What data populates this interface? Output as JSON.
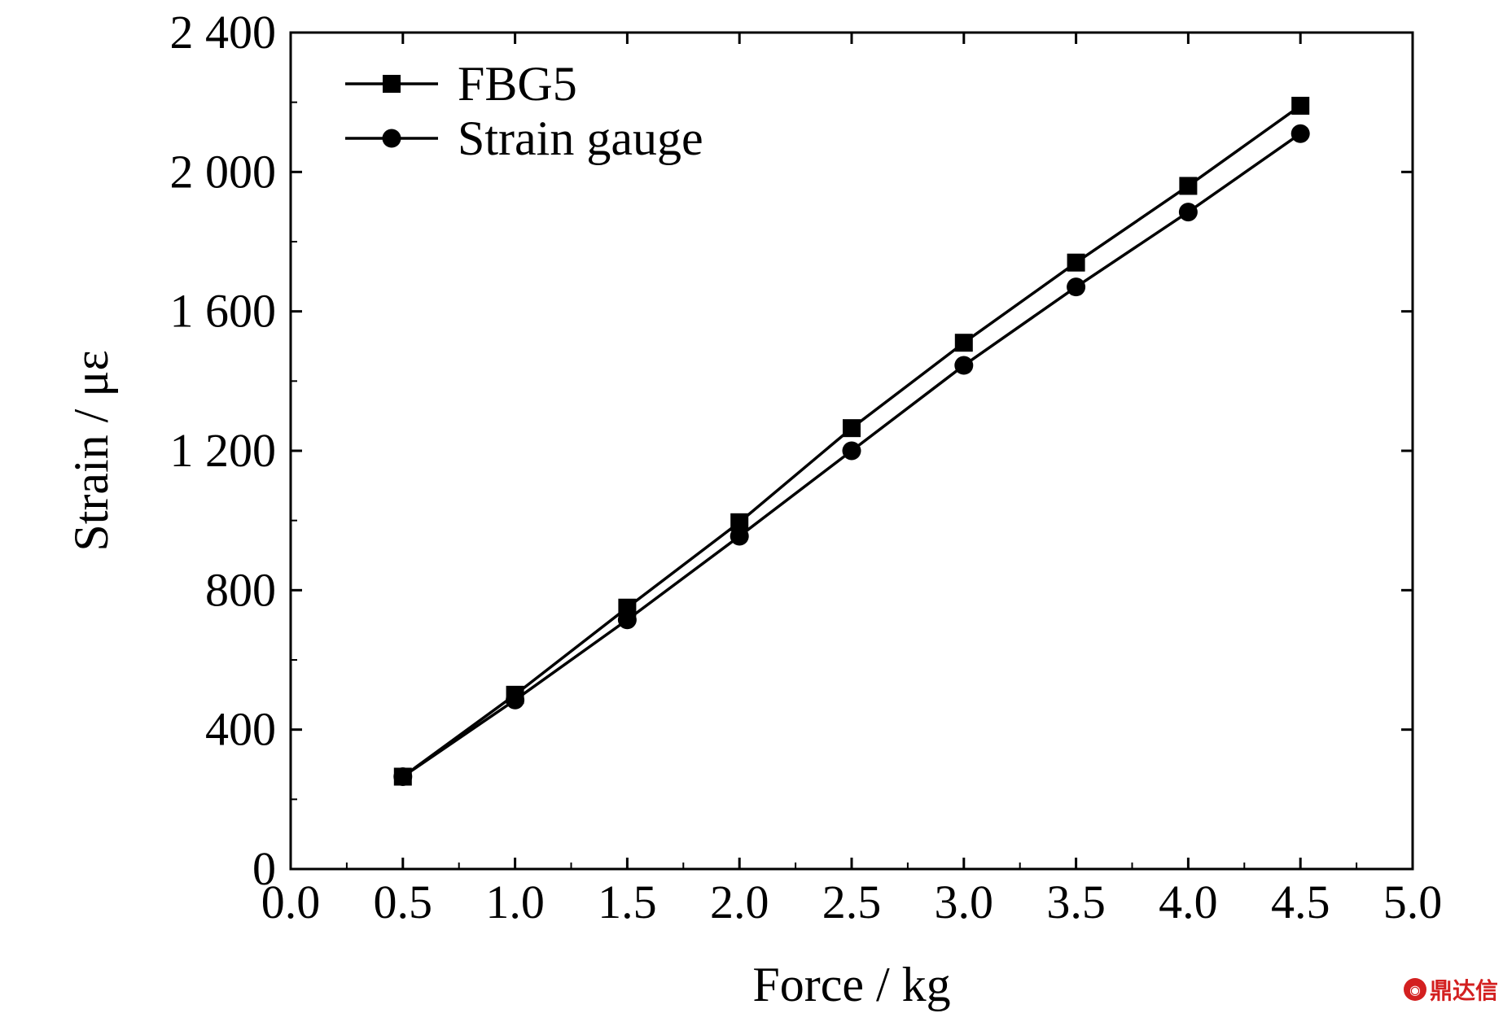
{
  "chart_data": {
    "type": "line",
    "title": "",
    "xlabel": "Force / kg",
    "ylabel": "Strain / με",
    "xlim": [
      0,
      5
    ],
    "ylim": [
      0,
      2400
    ],
    "x_ticks": [
      0,
      0.5,
      1,
      1.5,
      2,
      2.5,
      3,
      3.5,
      4,
      4.5,
      5
    ],
    "x_tick_labels": [
      "0.0",
      "0.5",
      "1.0",
      "1.5",
      "2.0",
      "2.5",
      "3.0",
      "3.5",
      "4.0",
      "4.5",
      "5.0"
    ],
    "y_ticks": [
      0,
      400,
      800,
      1200,
      1600,
      2000,
      2400
    ],
    "y_tick_labels": [
      "0",
      "400",
      "800",
      "1 200",
      "1 600",
      "2 000",
      "2 400"
    ],
    "grid": false,
    "legend_position": "top-left",
    "x": [
      0.5,
      1.0,
      1.5,
      2.0,
      2.5,
      3.0,
      3.5,
      4.0,
      4.5
    ],
    "series": [
      {
        "name": "FBG5",
        "marker": "square",
        "color": "#000000",
        "values": [
          265,
          500,
          750,
          995,
          1265,
          1510,
          1740,
          1960,
          2190
        ]
      },
      {
        "name": "Strain gauge",
        "marker": "circle",
        "color": "#000000",
        "values": [
          265,
          485,
          715,
          955,
          1200,
          1445,
          1670,
          1885,
          2110
        ]
      }
    ]
  },
  "watermark": "鼎达信"
}
